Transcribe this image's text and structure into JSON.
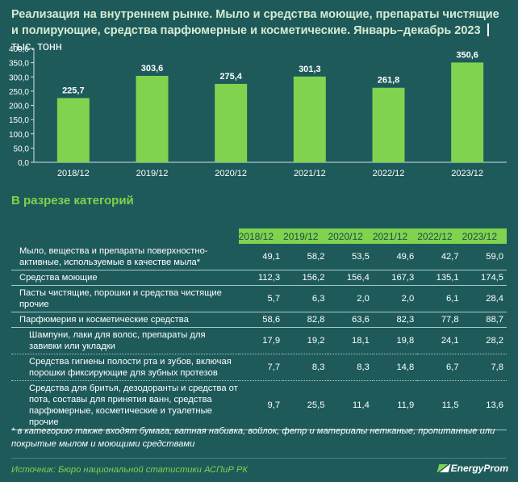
{
  "header": {
    "title": "Реализация на внутреннем рынке. Мыло и средства моющие, препараты чистящие и полирующие, средства парфюмерные и косметические. Январь–декабрь 2023",
    "unit": "тыс. тонн"
  },
  "chart_data": {
    "type": "bar",
    "categories": [
      "2018/12",
      "2019/12",
      "2020/12",
      "2021/12",
      "2022/12",
      "2023/12"
    ],
    "values": [
      225.7,
      303.6,
      275.4,
      301.3,
      261.8,
      350.6
    ],
    "value_labels": [
      "225,7",
      "303,6",
      "275,4",
      "301,3",
      "261,8",
      "350,6"
    ],
    "yticks": [
      "0,0",
      "50,0",
      "100,0",
      "150,0",
      "200,0",
      "250,0",
      "300,0",
      "350,0",
      "400,0"
    ],
    "ylim": [
      0,
      400
    ],
    "grid": false,
    "bar_color": "#7fd34e"
  },
  "section_title": "В разрезе категорий",
  "table": {
    "columns": [
      "2018/12",
      "2019/12",
      "2020/12",
      "2021/12",
      "2022/12",
      "2023/12"
    ],
    "rows": [
      {
        "label": "Мыло, вещества и препараты поверхностно-активные, используемые в качестве мыла*",
        "values": [
          "49,1",
          "58,2",
          "53,5",
          "49,6",
          "42,7",
          "59,0"
        ]
      },
      {
        "label": "Средства моющие",
        "values": [
          "112,3",
          "156,2",
          "156,4",
          "167,3",
          "135,1",
          "174,5"
        ]
      },
      {
        "label": "Пасты чистящие, порошки и средства чистящие прочие",
        "values": [
          "5,7",
          "6,3",
          "2,0",
          "2,0",
          "6,1",
          "28,4"
        ]
      },
      {
        "label": "Парфюмерия и косметические средства",
        "values": [
          "58,6",
          "82,8",
          "63,6",
          "82,3",
          "77,8",
          "88,7"
        ]
      },
      {
        "label": "Шампуни, лаки для волос, препараты для завивки или укладки",
        "values": [
          "17,9",
          "19,2",
          "18,1",
          "19,8",
          "24,1",
          "28,2"
        ]
      },
      {
        "label": "Средства гигиены полости рта и зубов, включая порошки фиксирующие для зубных протезов",
        "values": [
          "7,7",
          "8,3",
          "8,3",
          "14,8",
          "6,7",
          "7,8"
        ]
      },
      {
        "label": "Средства для бритья, дезодоранты и средства от пота, составы для принятия ванн, средства парфюмерные, косметические и туалетные прочие",
        "values": [
          "9,7",
          "25,5",
          "11,4",
          "11,9",
          "11,5",
          "13,6"
        ]
      }
    ]
  },
  "note": "* в категорию также входят бумага, ватная набивка, войлок, фетр и материалы нетканые, пропитанные или покрытые мылом и моющими средствами",
  "source": "Источник: Бюро национальной статистики АСПиР РК",
  "logo_text": "EnergyProm"
}
